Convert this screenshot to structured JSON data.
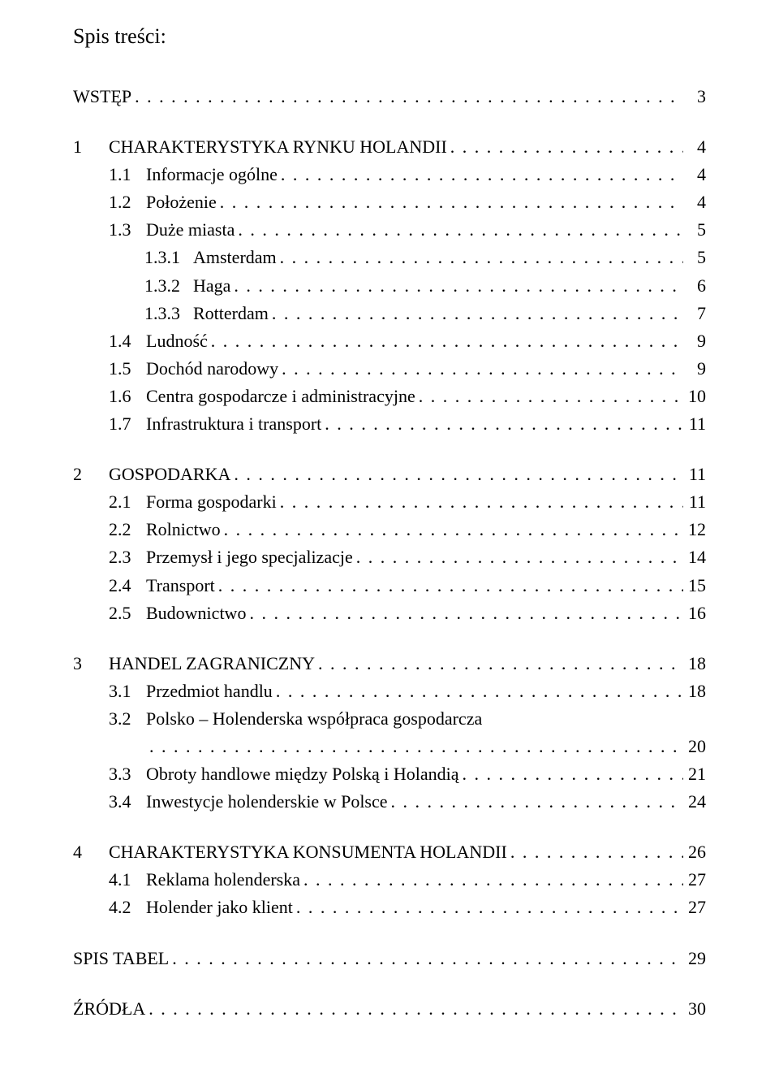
{
  "heading": "Spis treści:",
  "entries": [
    {
      "level": 0,
      "num": "",
      "label": "WSTĘP",
      "page": "3"
    },
    {
      "level": 0,
      "num": "1",
      "label": "CHARAKTERYSTYKA RYNKU HOLANDII",
      "page": "4"
    },
    {
      "level": 1,
      "num": "1.1",
      "label": "Informacje ogólne",
      "page": "4"
    },
    {
      "level": 1,
      "num": "1.2",
      "label": "Położenie",
      "page": "4"
    },
    {
      "level": 1,
      "num": "1.3",
      "label": "Duże miasta",
      "page": "5"
    },
    {
      "level": 2,
      "num": "1.3.1",
      "label": "Amsterdam",
      "page": "5"
    },
    {
      "level": 2,
      "num": "1.3.2",
      "label": "Haga",
      "page": "6"
    },
    {
      "level": 2,
      "num": "1.3.3",
      "label": "Rotterdam",
      "page": "7"
    },
    {
      "level": 1,
      "num": "1.4",
      "label": "Ludność",
      "page": "9"
    },
    {
      "level": 1,
      "num": "1.5",
      "label": "Dochód narodowy",
      "page": "9"
    },
    {
      "level": 1,
      "num": "1.6",
      "label": "Centra gospodarcze i administracyjne",
      "page": "10"
    },
    {
      "level": 1,
      "num": "1.7",
      "label": "Infrastruktura i transport",
      "page": "11"
    },
    {
      "level": 0,
      "num": "2",
      "label": "GOSPODARKA",
      "page": "11"
    },
    {
      "level": 1,
      "num": "2.1",
      "label": "Forma gospodarki",
      "page": "11"
    },
    {
      "level": 1,
      "num": "2.2",
      "label": "Rolnictwo",
      "page": "12"
    },
    {
      "level": 1,
      "num": "2.3",
      "label": "Przemysł i jego specjalizacje",
      "page": "14"
    },
    {
      "level": 1,
      "num": "2.4",
      "label": "Transport",
      "page": "15"
    },
    {
      "level": 1,
      "num": "2.5",
      "label": "Budownictwo",
      "page": "16"
    },
    {
      "level": 0,
      "num": "3",
      "label": "HANDEL ZAGRANICZNY",
      "page": "18"
    },
    {
      "level": 1,
      "num": "3.1",
      "label": "Przedmiot handlu",
      "page": "18"
    },
    {
      "level": 1,
      "num": "3.2",
      "label": "Polsko – Holenderska współpraca gospodarcza",
      "page": "",
      "noPage": true,
      "continuation": true
    },
    {
      "level": 1,
      "num": "",
      "label": "",
      "page": "20",
      "contOnly": true
    },
    {
      "level": 1,
      "num": "3.3",
      "label": "Obroty handlowe między Polską i Holandią",
      "page": "21"
    },
    {
      "level": 1,
      "num": "3.4",
      "label": "Inwestycje holenderskie w Polsce",
      "page": "24"
    },
    {
      "level": 0,
      "num": "4",
      "label": "CHARAKTERYSTYKA KONSUMENTA HOLANDII",
      "page": "26"
    },
    {
      "level": 1,
      "num": "4.1",
      "label": "Reklama holenderska",
      "page": "27"
    },
    {
      "level": 1,
      "num": "4.2",
      "label": "Holender jako klient",
      "page": "27"
    },
    {
      "level": 0,
      "num": "",
      "label": "SPIS TABEL",
      "page": "29"
    },
    {
      "level": 0,
      "num": "",
      "label": "ŹRÓDŁA",
      "page": "30"
    }
  ],
  "colors": {
    "text": "#000000",
    "background": "#ffffff"
  },
  "typography": {
    "font_family": "Times New Roman",
    "heading_fontsize_pt": 20,
    "body_fontsize_pt": 17
  }
}
